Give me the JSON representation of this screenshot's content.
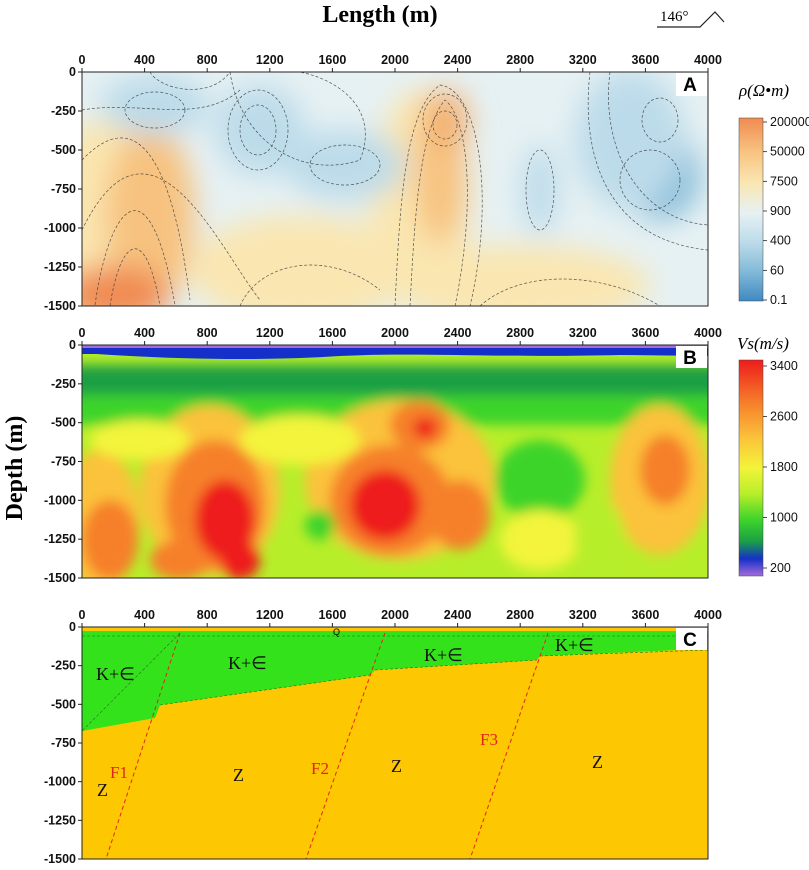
{
  "header": {
    "x_title": "Length (m)",
    "y_title": "Depth (m)",
    "compass": "146°"
  },
  "axes": {
    "x_ticks": [
      "0",
      "400",
      "800",
      "1200",
      "1600",
      "2000",
      "2400",
      "2800",
      "3200",
      "3600",
      "4000"
    ],
    "y_ticks": [
      "0",
      "-250",
      "-500",
      "-750",
      "-1000",
      "-1250",
      "-1500"
    ],
    "x_range": [
      0,
      4000
    ],
    "y_range": [
      -1500,
      0
    ]
  },
  "panel_a": {
    "letter": "A",
    "colorbar_title": "ρ(Ω•m)",
    "colorbar_ticks": [
      "200000",
      "50000",
      "7500",
      "900",
      "400",
      "60",
      "0.1"
    ],
    "colors": [
      "#f08b52",
      "#f7c27f",
      "#fae6b0",
      "#e6f1f3",
      "#bcdbea",
      "#82bad8",
      "#3f89c2"
    ]
  },
  "panel_b": {
    "letter": "B",
    "colorbar_title": "Vs(m/s)",
    "colorbar_ticks": [
      "3400",
      "2600",
      "1800",
      "1000",
      "200"
    ],
    "colors": [
      "#ee1c1c",
      "#f6802a",
      "#fbc23a",
      "#f3f43a",
      "#b7ee2a",
      "#3ed42b",
      "#1a9f45",
      "#1530c8",
      "#a56cdc"
    ]
  },
  "panel_c": {
    "letter": "C",
    "surface_label": "Q",
    "cover_label": "K+∈",
    "basement_label": "Z",
    "faults": [
      "F1",
      "F2",
      "F3"
    ],
    "colors": {
      "cover": "#33e21a",
      "basement": "#fdc702",
      "fault": "#e0261b"
    }
  }
}
